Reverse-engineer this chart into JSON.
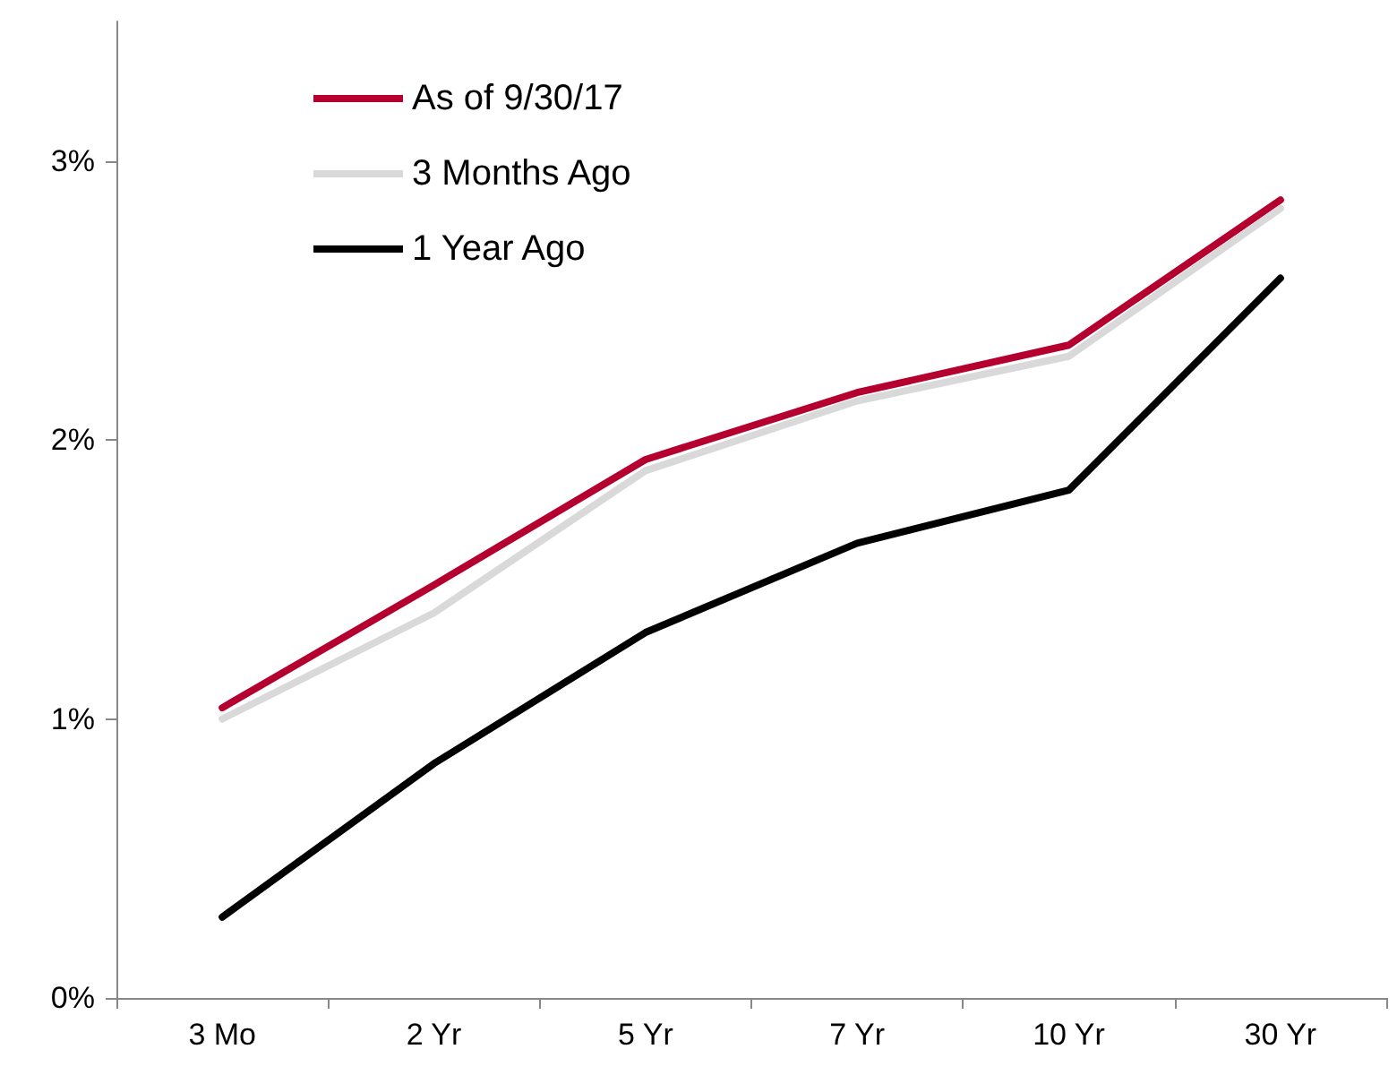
{
  "chart_data": {
    "type": "line",
    "categories": [
      "3 Mo",
      "2 Yr",
      "5 Yr",
      "7 Yr",
      "10 Yr",
      "30 Yr"
    ],
    "series": [
      {
        "name": "As of 9/30/17",
        "color": "#b5002f",
        "values": [
          1.04,
          1.48,
          1.93,
          2.17,
          2.34,
          2.86
        ]
      },
      {
        "name": "3 Months Ago",
        "color": "#d9d9d9",
        "values": [
          1.0,
          1.38,
          1.89,
          2.14,
          2.3,
          2.83
        ]
      },
      {
        "name": "1 Year Ago",
        "color": "#000000",
        "values": [
          0.29,
          0.84,
          1.31,
          1.63,
          1.82,
          2.58
        ]
      }
    ],
    "ylim": [
      0,
      3.5
    ],
    "yticks": [
      {
        "value": 0,
        "label": "0%"
      },
      {
        "value": 1,
        "label": "1%"
      },
      {
        "value": 2,
        "label": "2%"
      },
      {
        "value": 3,
        "label": "3%"
      }
    ],
    "grid": false,
    "legend": "top left",
    "marker": "none",
    "line_style": "solid"
  }
}
